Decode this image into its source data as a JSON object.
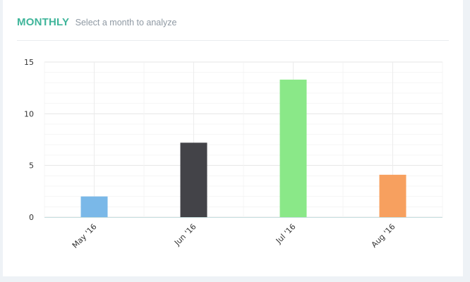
{
  "header": {
    "title": "MONTHLY",
    "subtitle": "Select a month to analyze"
  },
  "colors": {
    "title": "#3fb59a",
    "grid": "#ececec",
    "axis": "#c7dfe0",
    "tick_text": "#333333"
  },
  "chart_data": {
    "type": "bar",
    "title": "",
    "xlabel": "",
    "ylabel": "",
    "categories": [
      "May '16",
      "Jun '16",
      "Jul '16",
      "Aug '16"
    ],
    "values": [
      2,
      7.2,
      13.3,
      4.1
    ],
    "bar_colors": [
      "#7ab8e8",
      "#434348",
      "#8ae888",
      "#f7a05f"
    ],
    "ylim": [
      0,
      15
    ],
    "yticks": [
      "0",
      "5",
      "10",
      "15"
    ],
    "grid": true,
    "legend": "none"
  }
}
